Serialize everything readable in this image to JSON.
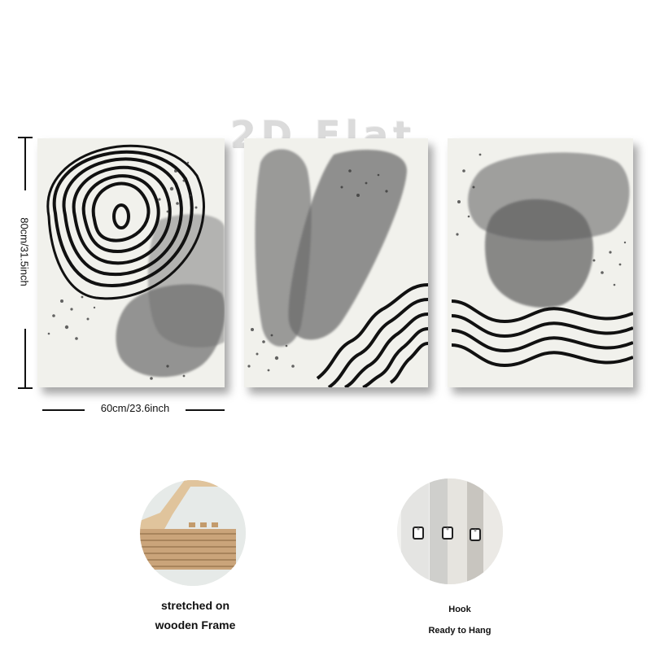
{
  "watermark": "2D Flat",
  "dimensions": {
    "height_label": "80cm/31.5inch",
    "width_label": "60cm/23.6inch"
  },
  "features": [
    {
      "caption_line1": "stretched on",
      "caption_line2": "wooden Frame",
      "icon": "wooden-frame-corner"
    },
    {
      "caption_line1": "Hook",
      "caption_line2": "Ready to Hang",
      "icon": "hanging-hook"
    }
  ],
  "colors": {
    "canvas": "#f1f1ec",
    "ink": "#111111",
    "wash": "#6f6f6f"
  }
}
